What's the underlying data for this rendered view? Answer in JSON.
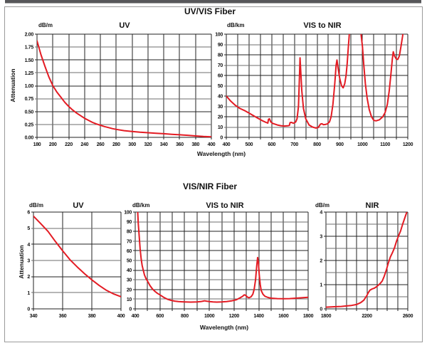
{
  "frame": {
    "top_bar_color": "#57575a",
    "border_color": "#9b9b9b",
    "background": "#ffffff"
  },
  "palette": {
    "curve_red": "#e31b23",
    "grid_dark": "#222222",
    "grid_light": "#6e6e6e",
    "text": "#111111"
  },
  "sections": [
    {
      "title": "UV/VIS Fiber",
      "xlabel": "Wavelength (nm)",
      "ylabel": "Attenuation"
    },
    {
      "title": "VIS/NIR Fiber",
      "xlabel": "Wavelength (nm)",
      "ylabel": "Attenuation"
    }
  ],
  "chart_data": [
    {
      "id": "uvvis_uv",
      "type": "line",
      "section": "UV/VIS Fiber",
      "title": "UV",
      "unit_label": "dB/m",
      "xlim": [
        180,
        400
      ],
      "x_grid_step": 20,
      "x_label_step": 20,
      "ylim": [
        0,
        2
      ],
      "y_grid_step": 0.25,
      "y_label_step": 0.25,
      "y_label_decimals": 2,
      "grid": true,
      "legend": "none",
      "line_color": "#e31b23",
      "points": [
        [
          180,
          1.87
        ],
        [
          185,
          1.6
        ],
        [
          190,
          1.38
        ],
        [
          195,
          1.17
        ],
        [
          200,
          1.0
        ],
        [
          205,
          0.88
        ],
        [
          210,
          0.78
        ],
        [
          215,
          0.68
        ],
        [
          220,
          0.6
        ],
        [
          225,
          0.53
        ],
        [
          230,
          0.47
        ],
        [
          235,
          0.42
        ],
        [
          240,
          0.37
        ],
        [
          245,
          0.33
        ],
        [
          250,
          0.29
        ],
        [
          255,
          0.26
        ],
        [
          260,
          0.235
        ],
        [
          265,
          0.21
        ],
        [
          270,
          0.19
        ],
        [
          275,
          0.17
        ],
        [
          280,
          0.155
        ],
        [
          290,
          0.13
        ],
        [
          300,
          0.115
        ],
        [
          310,
          0.1
        ],
        [
          320,
          0.09
        ],
        [
          330,
          0.08
        ],
        [
          340,
          0.07
        ],
        [
          350,
          0.06
        ],
        [
          360,
          0.05
        ],
        [
          370,
          0.04
        ],
        [
          380,
          0.027
        ],
        [
          390,
          0.017
        ],
        [
          400,
          0.01
        ]
      ]
    },
    {
      "id": "uvvis_visnir",
      "type": "line",
      "section": "UV/VIS Fiber",
      "title": "VIS to NIR",
      "unit_label": "dB/km",
      "xlim": [
        400,
        1200
      ],
      "x_grid_step": 50,
      "x_label_step": 100,
      "ylim": [
        0,
        100
      ],
      "y_grid_step": 10,
      "y_label_step": 10,
      "y_label_decimals": 0,
      "grid": true,
      "legend": "none",
      "line_color": "#e31b23",
      "points": [
        [
          400,
          40
        ],
        [
          420,
          35
        ],
        [
          440,
          31
        ],
        [
          460,
          28
        ],
        [
          480,
          26
        ],
        [
          500,
          23.5
        ],
        [
          520,
          21
        ],
        [
          540,
          18.5
        ],
        [
          560,
          16
        ],
        [
          575,
          14.5
        ],
        [
          583,
          13.8
        ],
        [
          586,
          17.5
        ],
        [
          590,
          18
        ],
        [
          596,
          15
        ],
        [
          605,
          13.5
        ],
        [
          625,
          12
        ],
        [
          640,
          11.3
        ],
        [
          655,
          11
        ],
        [
          670,
          11.2
        ],
        [
          678,
          11.5
        ],
        [
          681,
          14.3
        ],
        [
          688,
          14.5
        ],
        [
          694,
          13.8
        ],
        [
          700,
          14
        ],
        [
          706,
          15
        ],
        [
          712,
          18
        ],
        [
          718,
          30
        ],
        [
          722,
          55
        ],
        [
          725,
          77
        ],
        [
          728,
          64
        ],
        [
          733,
          45
        ],
        [
          740,
          28
        ],
        [
          750,
          18
        ],
        [
          765,
          12
        ],
        [
          780,
          10
        ],
        [
          795,
          9
        ],
        [
          805,
          9.5
        ],
        [
          815,
          12.8
        ],
        [
          822,
          13.2
        ],
        [
          828,
          12.3
        ],
        [
          836,
          12.5
        ],
        [
          845,
          13
        ],
        [
          855,
          15
        ],
        [
          862,
          20
        ],
        [
          870,
          32
        ],
        [
          878,
          52
        ],
        [
          884,
          70
        ],
        [
          888,
          75
        ],
        [
          893,
          67
        ],
        [
          900,
          57
        ],
        [
          908,
          50
        ],
        [
          915,
          48
        ],
        [
          922,
          52
        ],
        [
          928,
          60
        ],
        [
          933,
          72
        ],
        [
          938,
          88
        ],
        [
          941,
          96
        ],
        [
          944,
          106
        ],
        [
          990,
          106
        ],
        [
          994,
          100
        ],
        [
          1000,
          88
        ],
        [
          1006,
          70
        ],
        [
          1013,
          52
        ],
        [
          1021,
          38
        ],
        [
          1030,
          27
        ],
        [
          1040,
          20
        ],
        [
          1050,
          16.5
        ],
        [
          1060,
          16
        ],
        [
          1075,
          17
        ],
        [
          1090,
          20
        ],
        [
          1100,
          24
        ],
        [
          1110,
          32
        ],
        [
          1118,
          45
        ],
        [
          1126,
          62
        ],
        [
          1132,
          76
        ],
        [
          1136,
          83
        ],
        [
          1141,
          79
        ],
        [
          1149,
          76
        ],
        [
          1156,
          75.5
        ],
        [
          1163,
          79
        ],
        [
          1170,
          88
        ],
        [
          1177,
          98
        ],
        [
          1181,
          106
        ]
      ]
    },
    {
      "id": "visnir_uv",
      "type": "line",
      "section": "VIS/NIR Fiber",
      "title": "UV",
      "unit_label": "dB/m",
      "xlim": [
        340,
        400
      ],
      "x_grid_step": 20,
      "x_label_step": 20,
      "ylim": [
        0,
        6
      ],
      "y_grid_step": 1,
      "y_label_step": 1,
      "y_label_decimals": 0,
      "grid": true,
      "legend": "none",
      "line_color": "#e31b23",
      "points": [
        [
          340,
          5.75
        ],
        [
          345,
          5.28
        ],
        [
          350,
          4.8
        ],
        [
          355,
          4.18
        ],
        [
          360,
          3.6
        ],
        [
          365,
          3.05
        ],
        [
          370,
          2.6
        ],
        [
          375,
          2.18
        ],
        [
          380,
          1.8
        ],
        [
          385,
          1.45
        ],
        [
          390,
          1.15
        ],
        [
          395,
          0.92
        ],
        [
          400,
          0.75
        ]
      ]
    },
    {
      "id": "visnir_visnir",
      "type": "line",
      "section": "VIS/NIR Fiber",
      "title": "VIS to NIR",
      "unit_label": "dB/km",
      "xlim": [
        400,
        1800
      ],
      "x_grid_step": 100,
      "x_label_step": 200,
      "ylim": [
        0,
        100
      ],
      "y_grid_step": 10,
      "y_label_step": 10,
      "y_label_decimals": 0,
      "grid": true,
      "legend": "none",
      "line_color": "#e31b23",
      "points": [
        [
          415,
          106
        ],
        [
          420,
          100
        ],
        [
          425,
          88
        ],
        [
          432,
          75
        ],
        [
          440,
          62
        ],
        [
          448,
          52
        ],
        [
          456,
          45
        ],
        [
          465,
          40
        ],
        [
          475,
          35
        ],
        [
          488,
          31
        ],
        [
          500,
          28.5
        ],
        [
          520,
          24
        ],
        [
          540,
          20.5
        ],
        [
          560,
          18
        ],
        [
          580,
          16
        ],
        [
          600,
          14.5
        ],
        [
          630,
          12
        ],
        [
          660,
          10
        ],
        [
          690,
          8.8
        ],
        [
          720,
          8
        ],
        [
          750,
          7.5
        ],
        [
          800,
          7.2
        ],
        [
          850,
          7
        ],
        [
          900,
          7.2
        ],
        [
          930,
          7.5
        ],
        [
          950,
          8
        ],
        [
          962,
          8.3
        ],
        [
          975,
          8
        ],
        [
          1000,
          7.6
        ],
        [
          1030,
          7.2
        ],
        [
          1060,
          7
        ],
        [
          1100,
          7.2
        ],
        [
          1140,
          7.6
        ],
        [
          1180,
          8.2
        ],
        [
          1220,
          9.5
        ],
        [
          1250,
          11.5
        ],
        [
          1270,
          13
        ],
        [
          1283,
          14.5
        ],
        [
          1295,
          14
        ],
        [
          1308,
          12.2
        ],
        [
          1322,
          11.5
        ],
        [
          1338,
          12.5
        ],
        [
          1352,
          15
        ],
        [
          1363,
          20
        ],
        [
          1374,
          30
        ],
        [
          1384,
          45
        ],
        [
          1391,
          53
        ],
        [
          1397,
          48
        ],
        [
          1404,
          35
        ],
        [
          1412,
          25
        ],
        [
          1420,
          19
        ],
        [
          1435,
          15
        ],
        [
          1450,
          13
        ],
        [
          1475,
          11.8
        ],
        [
          1500,
          11
        ],
        [
          1550,
          10.6
        ],
        [
          1600,
          10.5
        ],
        [
          1650,
          10.6
        ],
        [
          1700,
          11
        ],
        [
          1750,
          11.5
        ],
        [
          1800,
          12
        ]
      ]
    },
    {
      "id": "visnir_nir",
      "type": "line",
      "section": "VIS/NIR Fiber",
      "title": "NIR",
      "unit_label": "dB/m",
      "xlim": [
        1800,
        2600
      ],
      "x_grid_step": 100,
      "x_label_step": 400,
      "ylim": [
        0,
        4
      ],
      "y_grid_step": 0.5,
      "y_label_step": 1,
      "y_label_decimals": 0,
      "grid": true,
      "legend": "none",
      "line_color": "#e31b23",
      "points": [
        [
          1800,
          0.07
        ],
        [
          1850,
          0.08
        ],
        [
          1900,
          0.09
        ],
        [
          1950,
          0.1
        ],
        [
          2000,
          0.12
        ],
        [
          2050,
          0.14
        ],
        [
          2100,
          0.18
        ],
        [
          2140,
          0.26
        ],
        [
          2170,
          0.36
        ],
        [
          2200,
          0.55
        ],
        [
          2215,
          0.68
        ],
        [
          2230,
          0.77
        ],
        [
          2250,
          0.82
        ],
        [
          2270,
          0.85
        ],
        [
          2290,
          0.9
        ],
        [
          2310,
          0.97
        ],
        [
          2330,
          1.05
        ],
        [
          2350,
          1.15
        ],
        [
          2370,
          1.35
        ],
        [
          2390,
          1.6
        ],
        [
          2410,
          1.9
        ],
        [
          2430,
          2.15
        ],
        [
          2450,
          2.32
        ],
        [
          2470,
          2.52
        ],
        [
          2490,
          2.8
        ],
        [
          2510,
          3.02
        ],
        [
          2530,
          3.22
        ],
        [
          2550,
          3.5
        ],
        [
          2570,
          3.75
        ],
        [
          2590,
          4.0
        ]
      ]
    }
  ]
}
